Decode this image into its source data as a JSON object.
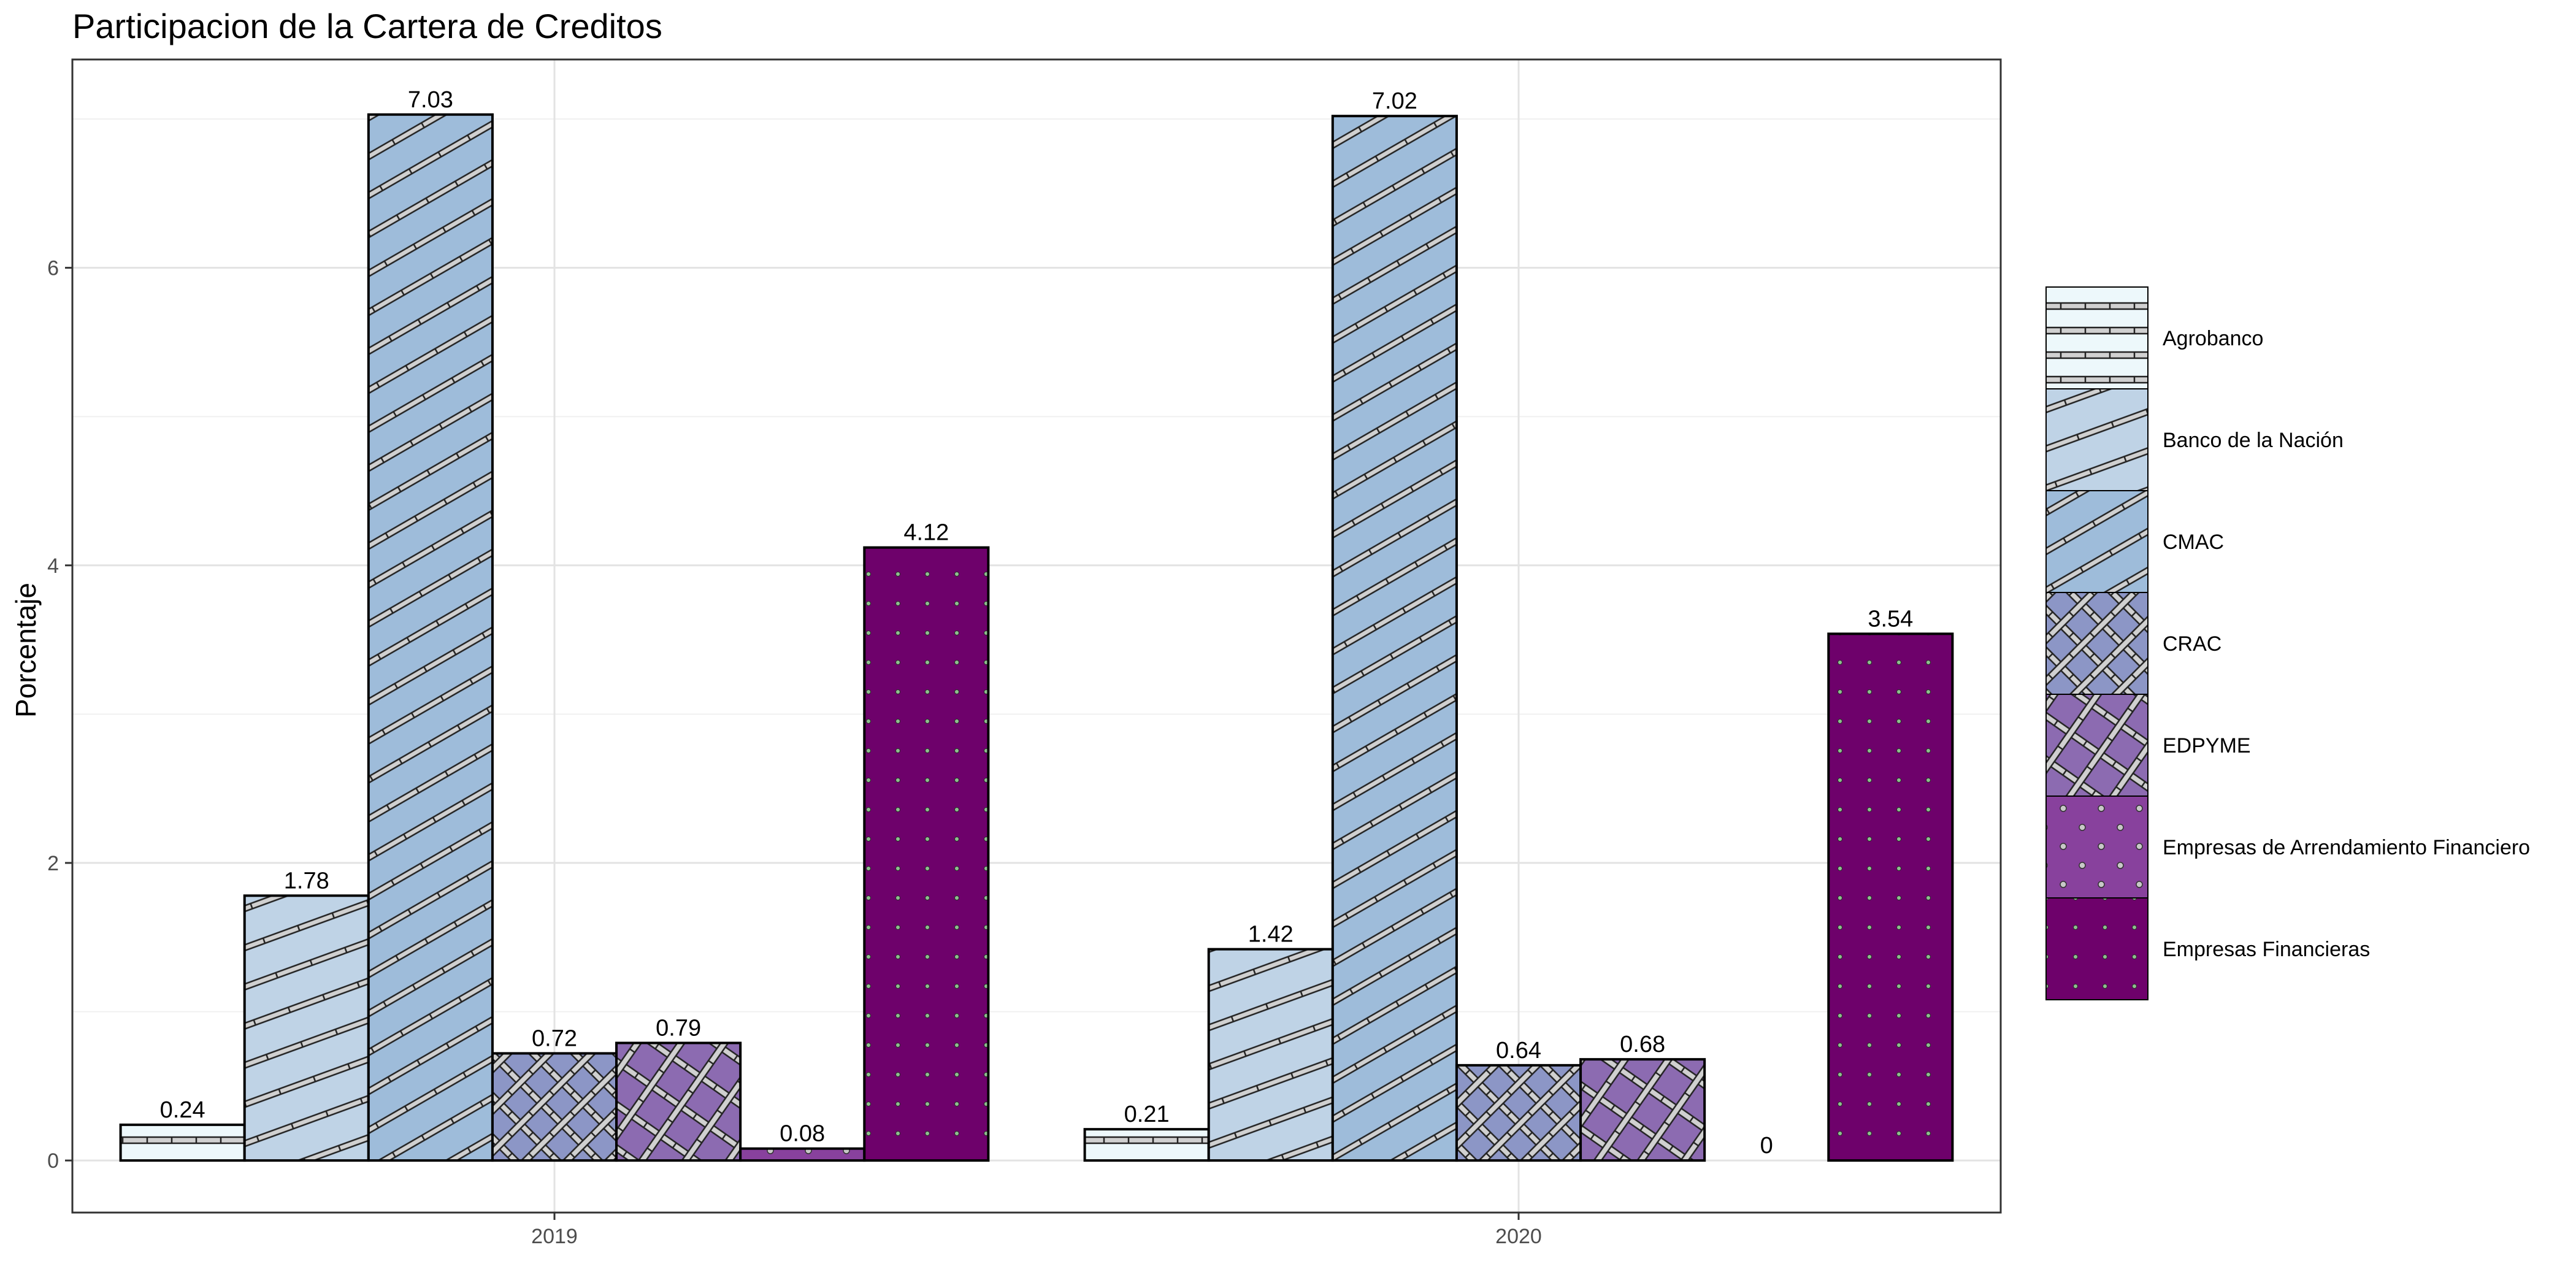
{
  "chart_data": {
    "type": "bar",
    "title": "Participacion de la Cartera de Creditos",
    "xlabel": "",
    "ylabel": "Porcentaje",
    "categories": [
      "2019",
      "2020"
    ],
    "ylim": [
      -0.35,
      7.4
    ],
    "yticks": [
      0,
      2,
      4,
      6
    ],
    "grid": true,
    "legend_position": "right",
    "series": [
      {
        "name": "Agrobanco",
        "values": [
          0.24,
          0.21
        ],
        "labels": [
          "0.24",
          "0.21"
        ],
        "color": "#edf8fb",
        "pattern": "stripe-horizontal"
      },
      {
        "name": "Banco de la Nación",
        "values": [
          1.78,
          1.42
        ],
        "labels": [
          "1.78",
          "1.42"
        ],
        "color": "#bfd3e6",
        "pattern": "stripe-shallow"
      },
      {
        "name": "CMAC",
        "values": [
          7.03,
          7.02
        ],
        "labels": [
          "7.03",
          "7.02"
        ],
        "color": "#9ebcda",
        "pattern": "stripe-steep"
      },
      {
        "name": "CRAC",
        "values": [
          0.72,
          0.64
        ],
        "labels": [
          "0.72",
          "0.64"
        ],
        "color": "#8c96c6",
        "pattern": "crosshatch"
      },
      {
        "name": "EDPYME",
        "values": [
          0.79,
          0.68
        ],
        "labels": [
          "0.79",
          "0.68"
        ],
        "color": "#8c6bb1",
        "pattern": "crosshatch-wide"
      },
      {
        "name": "Empresas de Arrendamiento Financiero",
        "values": [
          0.08,
          0
        ],
        "labels": [
          "0.08",
          "0"
        ],
        "color": "#88419d",
        "pattern": "dots-sparse"
      },
      {
        "name": "Empresas Financieras",
        "values": [
          4.12,
          3.54
        ],
        "labels": [
          "4.12",
          "3.54"
        ],
        "color": "#6e016b",
        "pattern": "dots-dense"
      }
    ]
  }
}
